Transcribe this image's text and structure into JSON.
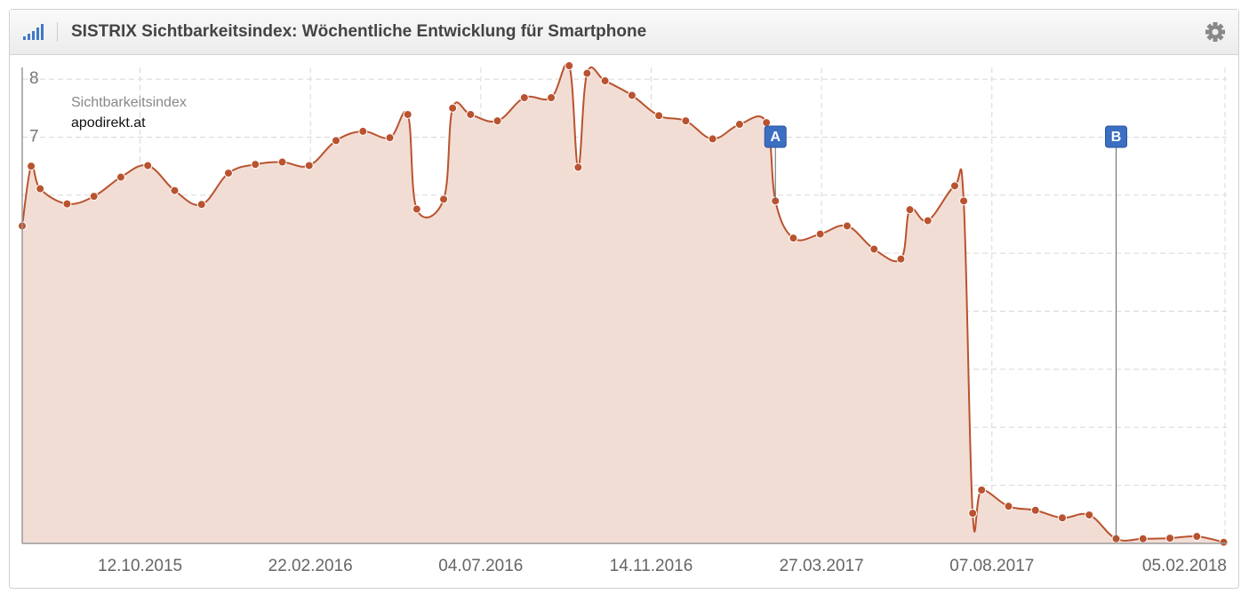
{
  "chart_data": {
    "type": "area",
    "title": "SISTRIX Sichtbarkeitsindex: Wöchentliche Entwicklung für Smartphone",
    "legend_title": "Sichtbarkeitsindex",
    "x": [
      "12.07.2015",
      "19.07.2015",
      "26.07.2015",
      "16.08.2015",
      "06.09.2015",
      "27.09.2015",
      "18.10.2015",
      "08.11.2015",
      "29.11.2015",
      "20.12.2015",
      "10.01.2016",
      "31.01.2016",
      "21.02.2016",
      "13.03.2016",
      "03.04.2016",
      "24.04.2016",
      "08.05.2016",
      "15.05.2016",
      "05.06.2016",
      "12.06.2016",
      "26.06.2016",
      "17.07.2016",
      "07.08.2016",
      "28.08.2016",
      "11.09.2016",
      "18.09.2016",
      "25.09.2016",
      "09.10.2016",
      "30.10.2016",
      "20.11.2016",
      "11.12.2016",
      "01.01.2017",
      "22.01.2017",
      "12.02.2017",
      "19.02.2017",
      "05.03.2017",
      "26.03.2017",
      "16.04.2017",
      "07.05.2017",
      "28.05.2017",
      "04.06.2017",
      "18.06.2017",
      "09.07.2017",
      "16.07.2017",
      "23.07.2017",
      "30.07.2017",
      "20.08.2017",
      "10.09.2017",
      "01.10.2017",
      "22.10.2017",
      "12.11.2017",
      "03.12.2017",
      "24.12.2017",
      "14.01.2018",
      "04.02.2018"
    ],
    "series": [
      {
        "name": "apodirekt.at",
        "color": "#b9532f",
        "fill": "#f2ddd5",
        "values": [
          5.47,
          6.5,
          6.11,
          5.85,
          5.98,
          6.31,
          6.51,
          6.08,
          5.84,
          6.38,
          6.53,
          6.57,
          6.51,
          6.94,
          7.1,
          6.99,
          7.39,
          5.76,
          5.93,
          7.5,
          7.39,
          7.28,
          7.68,
          7.68,
          8.23,
          6.48,
          8.1,
          7.97,
          7.72,
          7.37,
          7.28,
          6.97,
          7.22,
          7.25,
          5.9,
          5.26,
          5.33,
          5.47,
          5.07,
          4.9,
          5.75,
          5.56,
          6.16,
          5.9,
          0.52,
          0.92,
          0.64,
          0.57,
          0.44,
          0.49,
          0.08,
          0.08,
          0.09,
          0.12,
          0.02
        ]
      }
    ],
    "xlim": [
      "12.07.2015",
      "05.02.2018"
    ],
    "xticks": [
      "12.10.2015",
      "22.02.2016",
      "04.07.2016",
      "14.11.2016",
      "27.03.2017",
      "07.08.2017",
      "05.02.2018"
    ],
    "ylim": [
      0,
      8.2
    ],
    "yticks": [
      0,
      1,
      2,
      3,
      4,
      5,
      6,
      7,
      8
    ],
    "grid": true,
    "annotations": [
      {
        "label": "A",
        "x": "19.02.2017"
      },
      {
        "label": "B",
        "x": "12.11.2017"
      }
    ]
  }
}
